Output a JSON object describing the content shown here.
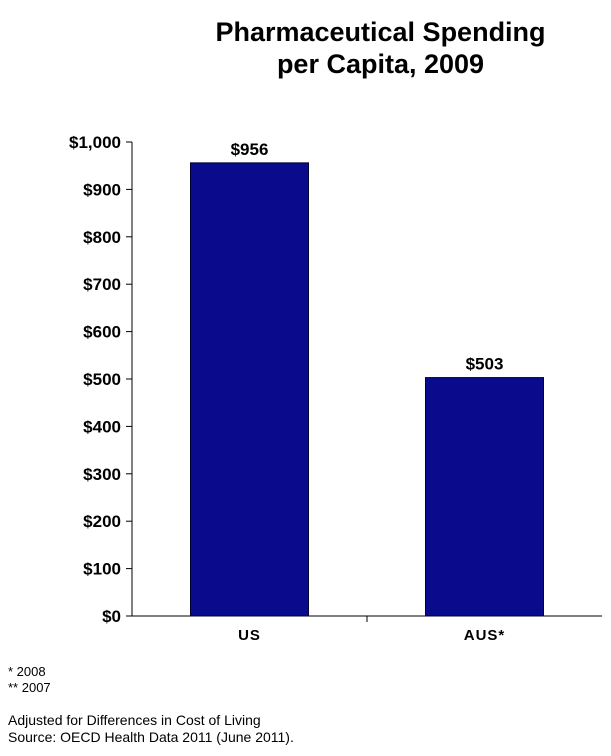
{
  "chart_data": {
    "type": "bar",
    "title_lines": [
      "Pharmaceutical Spending",
      "per Capita, 2009"
    ],
    "categories": [
      "US",
      "AUS*"
    ],
    "values": [
      956,
      503
    ],
    "data_labels": [
      "$956",
      "$503"
    ],
    "ylim": [
      0,
      1000
    ],
    "yticks": [
      0,
      100,
      200,
      300,
      400,
      500,
      600,
      700,
      800,
      900,
      1000
    ],
    "ytick_labels": [
      "$0",
      "$100",
      "$200",
      "$300",
      "$400",
      "$500",
      "$600",
      "$700",
      "$800",
      "$900",
      "$1,000"
    ],
    "bar_color": "#0A0A8C",
    "grid": false,
    "xlabel": "",
    "ylabel": ""
  },
  "footnotes": [
    "* 2008",
    "** 2007"
  ],
  "source_lines": [
    "Adjusted for Differences in Cost of Living",
    "Source: OECD Health Data 2011 (June 2011)."
  ]
}
